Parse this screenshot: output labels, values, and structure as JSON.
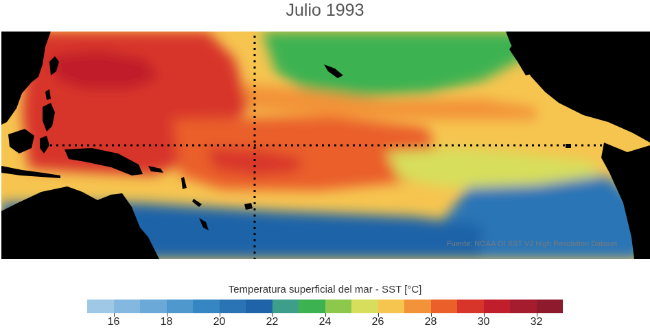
{
  "title": "Julio 1993",
  "map": {
    "credit": "Fuente: NOAA OI SST V2 High Resolution Dataset",
    "land_color": "#000000",
    "reference_lines": [
      "equator",
      "dateline"
    ],
    "zones": [
      {
        "name": "north-pacific-cool",
        "temp": 23
      },
      {
        "name": "north-subtropical-band",
        "temp": 27
      },
      {
        "name": "warm-pool-west",
        "temp": 29
      },
      {
        "name": "warm-pool-hotspot",
        "temp": 30
      },
      {
        "name": "equatorial-central",
        "temp": 28
      },
      {
        "name": "equatorial-warm-tongue",
        "temp": 29
      },
      {
        "name": "cold-tongue-east",
        "temp": 25
      },
      {
        "name": "peru-upwelling",
        "temp": 20
      },
      {
        "name": "south-pacific-cool",
        "temp": 21
      },
      {
        "name": "central-america-warm",
        "temp": 29
      }
    ]
  },
  "colorbar": {
    "label": "Temperatura superficial del mar - SST  [°C]",
    "min": 15,
    "max": 33,
    "colors": [
      "#9ec8e6",
      "#84b8e0",
      "#6aa9d8",
      "#4f98ce",
      "#3686c3",
      "#2a74b6",
      "#1f64a8",
      "#3d9e8a",
      "#3cb251",
      "#8cc84b",
      "#d7de5b",
      "#f6c550",
      "#f39339",
      "#ea5f2a",
      "#d8352a",
      "#c01e2a",
      "#a51c2e",
      "#8e1a2e"
    ],
    "ticks": [
      "16",
      "18",
      "20",
      "22",
      "24",
      "26",
      "28",
      "30",
      "32"
    ]
  }
}
